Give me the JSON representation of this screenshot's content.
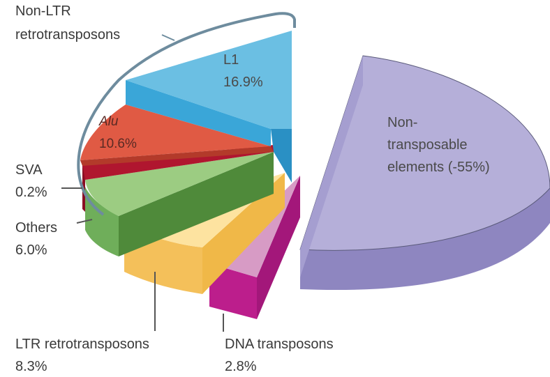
{
  "chart_data": {
    "type": "pie",
    "bracket_label": [
      "Non-LTR",
      "retrotransposons"
    ],
    "slices": [
      {
        "key": "l1",
        "name": "L1",
        "value_label": "16.9%",
        "value": 16.9,
        "color": "#6bbfe3",
        "side_color": "#3aa6d8",
        "exploded": false
      },
      {
        "key": "alu",
        "name": "Alu",
        "value_label": "10.6%",
        "value": 10.6,
        "color": "#e05a44",
        "side_color": "#b33a2a",
        "exploded": false,
        "italic": true
      },
      {
        "key": "sva",
        "name": "SVA",
        "value_label": "0.2%",
        "value": 0.2,
        "color": "#b0162f",
        "side_color": "#8a0f24",
        "exploded": false
      },
      {
        "key": "others",
        "name": "Others",
        "value_label": "6.0%",
        "value": 6.0,
        "color": "#9ccc82",
        "side_color": "#4f8a3a",
        "exploded": false
      },
      {
        "key": "ltr",
        "name": "LTR retrotransposons",
        "value_label": "8.3%",
        "value": 8.3,
        "color": "#fde3a0",
        "side_color": "#f4c05a",
        "exploded": true
      },
      {
        "key": "dna",
        "name": "DNA transposons",
        "value_label": "2.8%",
        "value": 2.8,
        "color": "#d79bc5",
        "side_color": "#bc1e8c",
        "exploded": true
      },
      {
        "key": "non_te",
        "name_lines": [
          "Non-",
          "transposable",
          "elements (-55%)"
        ],
        "value": 55,
        "color": "#b5afd9",
        "side_color": "#8e86c0",
        "exploded": true
      }
    ]
  }
}
